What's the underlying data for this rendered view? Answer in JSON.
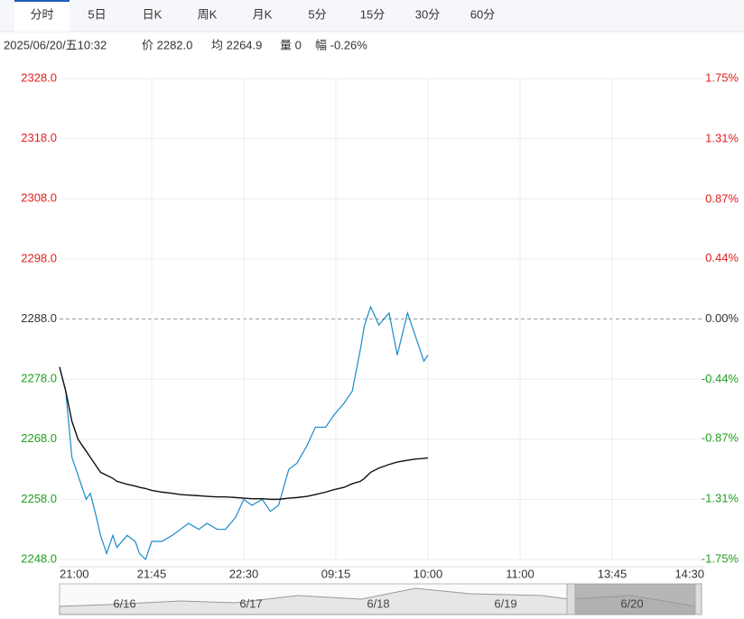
{
  "tabs": [
    "分时",
    "5日",
    "日K",
    "周K",
    "月K",
    "5分",
    "15分",
    "30分",
    "60分"
  ],
  "info": [
    "2025/06/20/五10:32",
    "价 2282.0",
    "均 2264.9",
    "量 0",
    "幅 -0.26%"
  ],
  "chart_data": {
    "type": "line",
    "x": [
      0,
      3,
      6,
      9,
      13,
      15,
      18,
      20,
      23,
      26,
      28,
      33,
      37,
      39,
      42,
      45,
      50,
      55,
      59,
      63,
      68,
      72,
      77,
      81,
      86,
      90,
      94,
      99,
      103,
      107,
      112,
      116,
      121,
      125,
      130,
      134,
      139,
      143,
      147,
      149,
      152,
      156,
      161,
      165,
      170,
      174,
      178,
      180
    ],
    "series": [
      {
        "name": "价",
        "color": "#1a8ac8",
        "values": [
          2280,
          2276,
          2265,
          2262,
          2258,
          2259,
          2255,
          2252,
          2249,
          2252,
          2250,
          2252,
          2251,
          2249,
          2248,
          2251,
          2251,
          2252,
          2253,
          2254,
          2253,
          2254,
          2253,
          2253,
          2255,
          2258,
          2257,
          2258,
          2256,
          2257,
          2263,
          2264,
          2267,
          2270,
          2270,
          2272,
          2274,
          2276,
          2283,
          2287,
          2290,
          2287,
          2289,
          2282,
          2289,
          2285,
          2281,
          2282
        ]
      },
      {
        "name": "均",
        "color": "#111111",
        "values": [
          2280,
          2276,
          2271,
          2268,
          2266,
          2265,
          2263.5,
          2262.5,
          2262,
          2261.5,
          2261,
          2260.5,
          2260.2,
          2260,
          2259.8,
          2259.5,
          2259.2,
          2259,
          2258.8,
          2258.7,
          2258.6,
          2258.5,
          2258.4,
          2258.4,
          2258.3,
          2258.2,
          2258.1,
          2258.1,
          2258,
          2258,
          2258.2,
          2258.3,
          2258.5,
          2258.8,
          2259.2,
          2259.6,
          2260,
          2260.6,
          2261,
          2261.5,
          2262.5,
          2263.2,
          2263.8,
          2264.2,
          2264.5,
          2264.7,
          2264.8,
          2264.9
        ]
      }
    ],
    "xlim": [
      0,
      315
    ],
    "xticks": [
      {
        "value": 0,
        "label": "21:00"
      },
      {
        "value": 45,
        "label": "21:45"
      },
      {
        "value": 90,
        "label": "22:30"
      },
      {
        "value": 135,
        "label": "09:15"
      },
      {
        "value": 180,
        "label": "10:00"
      },
      {
        "value": 225,
        "label": "11:00"
      },
      {
        "value": 270,
        "label": "13:45"
      },
      {
        "value": 315,
        "label": "14:30"
      }
    ],
    "ylim": [
      2248,
      2328
    ],
    "yticks": [
      {
        "value": 2328,
        "label": "2328.0"
      },
      {
        "value": 2318,
        "label": "2318.0"
      },
      {
        "value": 2308,
        "label": "2308.0"
      },
      {
        "value": 2298,
        "label": "2298.0"
      },
      {
        "value": 2288,
        "label": "2288.0"
      },
      {
        "value": 2278,
        "label": "2278.0"
      },
      {
        "value": 2268,
        "label": "2268.0"
      },
      {
        "value": 2258,
        "label": "2258.0"
      },
      {
        "value": 2248,
        "label": "2248.0"
      }
    ],
    "y2lim": [
      -1.75,
      1.75
    ],
    "y2ticks": [
      {
        "value": 1.75,
        "label": "1.75%"
      },
      {
        "value": 1.31,
        "label": "1.31%"
      },
      {
        "value": 0.87,
        "label": "0.87%"
      },
      {
        "value": 0.44,
        "label": "0.44%"
      },
      {
        "value": 0,
        "label": "0.00%"
      },
      {
        "value": -0.44,
        "label": "-0.44%"
      },
      {
        "value": -0.87,
        "label": "-0.87%"
      },
      {
        "value": -1.31,
        "label": "-1.31%"
      },
      {
        "value": -1.75,
        "label": "-1.75%"
      }
    ],
    "grid": true,
    "navigator": [
      "6/16",
      "6/17",
      "6/18",
      "6/19",
      "6/20"
    ]
  }
}
